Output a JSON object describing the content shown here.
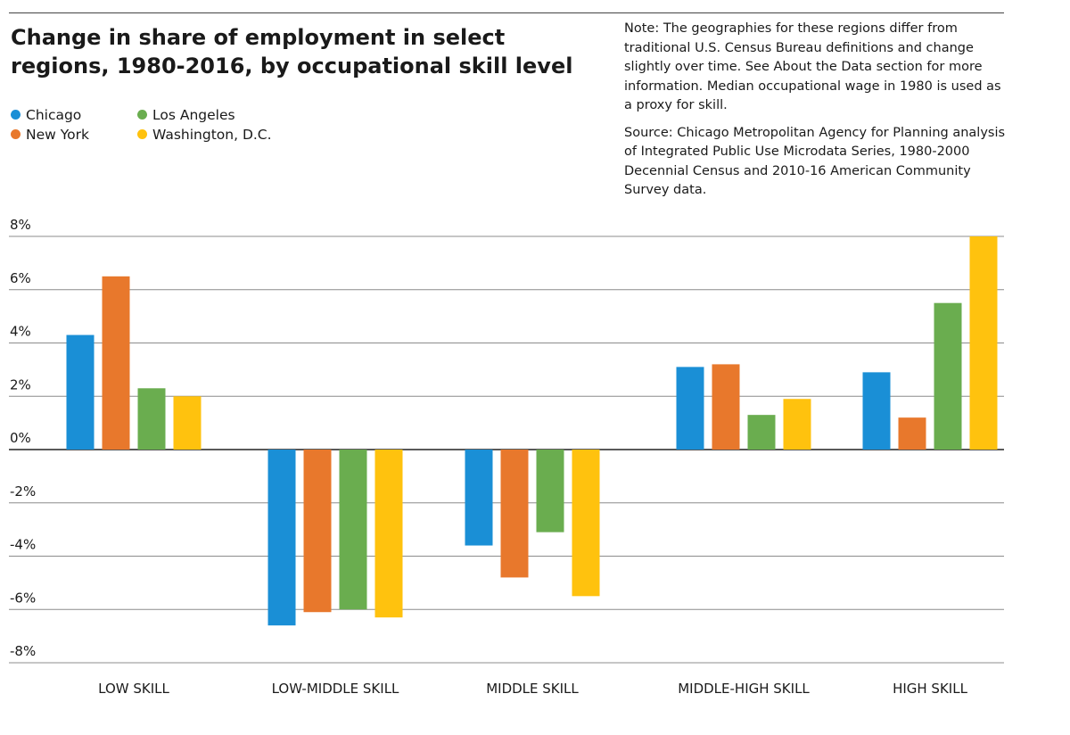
{
  "title": "Change in share of employment in select regions, 1980-2016, by occupational skill level",
  "notes": {
    "note": "Note: The geographies for these regions differ from traditional U.S. Census Bureau definitions and change slightly over time. See About the Data section for more information. Median occupational wage in 1980 is used as a proxy for skill.",
    "source": "Source: Chicago Metropolitan Agency for Planning analysis of Integrated Public Use Microdata Series, 1980-2000 Decennial Census and 2010-16 American Community Survey data."
  },
  "legend": [
    {
      "label": "Chicago",
      "color": "#1a8fd6"
    },
    {
      "label": "New York",
      "color": "#e8782c"
    },
    {
      "label": "Los Angeles",
      "color": "#6aad4f"
    },
    {
      "label": "Washington, D.C.",
      "color": "#ffc20e"
    }
  ],
  "chart_data": {
    "type": "bar",
    "title": "Change in share of employment in select regions, 1980-2016, by occupational skill level",
    "xlabel": "",
    "ylabel": "",
    "categories": [
      "LOW SKILL",
      "LOW-MIDDLE SKILL",
      "MIDDLE SKILL",
      "MIDDLE-HIGH SKILL",
      "HIGH SKILL"
    ],
    "series": [
      {
        "name": "Chicago",
        "color": "#1a8fd6",
        "values": [
          4.3,
          -6.6,
          -3.6,
          3.1,
          2.9
        ]
      },
      {
        "name": "New York",
        "color": "#e8782c",
        "values": [
          6.5,
          -6.1,
          -4.8,
          3.2,
          1.2
        ]
      },
      {
        "name": "Los Angeles",
        "color": "#6aad4f",
        "values": [
          2.3,
          -6.0,
          -3.1,
          1.3,
          5.5
        ]
      },
      {
        "name": "Washington, D.C.",
        "color": "#ffc20e",
        "values": [
          2.0,
          -6.3,
          -5.5,
          1.9,
          8.0
        ]
      }
    ],
    "ylim": [
      -8,
      8
    ],
    "yticks": [
      8,
      6,
      4,
      2,
      0,
      -2,
      -4,
      -6,
      -8
    ],
    "ytick_labels": [
      "8%",
      "6%",
      "4%",
      "2%",
      "0%",
      "-2%",
      "-4%",
      "-6%",
      "-8%"
    ],
    "grid": true,
    "legend_position": "top-left"
  }
}
